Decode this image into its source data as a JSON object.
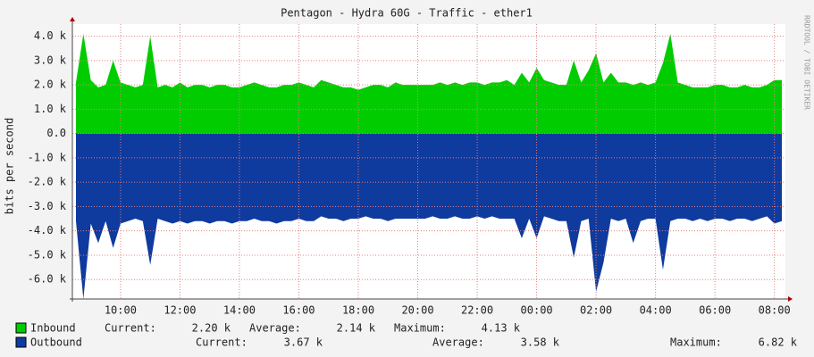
{
  "chart_data": {
    "type": "area",
    "title": "Pentagon - Hydra 60G - Traffic - ether1",
    "y_label": "bits per second",
    "watermark": "RRDTOOL / TOBI OETIKER",
    "grid": true,
    "ylim": [
      -6800,
      4500
    ],
    "yticks": [
      {
        "value": 4000,
        "label": "4.0 k"
      },
      {
        "value": 3000,
        "label": "3.0 k"
      },
      {
        "value": 2000,
        "label": "2.0 k"
      },
      {
        "value": 1000,
        "label": "1.0 k"
      },
      {
        "value": 0,
        "label": "0.0"
      },
      {
        "value": -1000,
        "label": "-1.0 k"
      },
      {
        "value": -2000,
        "label": "-2.0 k"
      },
      {
        "value": -3000,
        "label": "-3.0 k"
      },
      {
        "value": -4000,
        "label": "-4.0 k"
      },
      {
        "value": -5000,
        "label": "-5.0 k"
      },
      {
        "value": -6000,
        "label": "-6.0 k"
      }
    ],
    "x": [
      "08:30",
      "08:45",
      "09:00",
      "09:15",
      "09:30",
      "09:45",
      "10:00",
      "10:15",
      "10:30",
      "10:45",
      "11:00",
      "11:15",
      "11:30",
      "11:45",
      "12:00",
      "12:15",
      "12:30",
      "12:45",
      "13:00",
      "13:15",
      "13:30",
      "13:45",
      "14:00",
      "14:15",
      "14:30",
      "14:45",
      "15:00",
      "15:15",
      "15:30",
      "15:45",
      "16:00",
      "16:15",
      "16:30",
      "16:45",
      "17:00",
      "17:15",
      "17:30",
      "17:45",
      "18:00",
      "18:15",
      "18:30",
      "18:45",
      "19:00",
      "19:15",
      "19:30",
      "19:45",
      "20:00",
      "20:15",
      "20:30",
      "20:45",
      "21:00",
      "21:15",
      "21:30",
      "21:45",
      "22:00",
      "22:15",
      "22:30",
      "22:45",
      "23:00",
      "23:15",
      "23:30",
      "23:45",
      "00:00",
      "00:15",
      "00:30",
      "00:45",
      "01:00",
      "01:15",
      "01:30",
      "01:45",
      "02:00",
      "02:15",
      "02:30",
      "02:45",
      "03:00",
      "03:15",
      "03:30",
      "03:45",
      "04:00",
      "04:15",
      "04:30",
      "04:45",
      "05:00",
      "05:15",
      "05:30",
      "05:45",
      "06:00",
      "06:15",
      "06:30",
      "06:45",
      "07:00",
      "07:15",
      "07:30",
      "07:45",
      "08:00",
      "08:15"
    ],
    "xticks": [
      "10:00",
      "12:00",
      "14:00",
      "16:00",
      "18:00",
      "20:00",
      "22:00",
      "00:00",
      "02:00",
      "04:00",
      "06:00",
      "08:00"
    ],
    "series": [
      {
        "name": "Inbound",
        "color": "#00cc00",
        "values": [
          2100,
          4100,
          2200,
          1900,
          2000,
          3000,
          2100,
          2000,
          1900,
          2000,
          4000,
          1900,
          2000,
          1900,
          2100,
          1900,
          2000,
          2000,
          1900,
          2000,
          2000,
          1900,
          1900,
          2000,
          2100,
          2000,
          1900,
          1900,
          2000,
          2000,
          2100,
          2000,
          1900,
          2200,
          2100,
          2000,
          1900,
          1900,
          1800,
          1900,
          2000,
          2000,
          1900,
          2100,
          2000,
          2000,
          2000,
          2000,
          2000,
          2100,
          2000,
          2100,
          2000,
          2100,
          2100,
          2000,
          2100,
          2100,
          2200,
          2000,
          2500,
          2100,
          2700,
          2200,
          2100,
          2000,
          2000,
          3000,
          2100,
          2600,
          3300,
          2100,
          2500,
          2100,
          2100,
          2000,
          2100,
          2000,
          2100,
          2900,
          4100,
          2100,
          2000,
          1900,
          1900,
          1900,
          2000,
          2000,
          1900,
          1900,
          2000,
          1900,
          1900,
          2000,
          2200,
          2200
        ],
        "stats": [
          {
            "label": "Current:",
            "value": "2.20 k"
          },
          {
            "label": "Average:",
            "value": "2.14 k"
          },
          {
            "label": "Maximum:",
            "value": "4.13 k"
          }
        ]
      },
      {
        "name": "Outbound",
        "color": "#0f3a9e",
        "values": [
          -3600,
          -6800,
          -3700,
          -4500,
          -3600,
          -4700,
          -3700,
          -3600,
          -3500,
          -3600,
          -5400,
          -3500,
          -3600,
          -3700,
          -3600,
          -3700,
          -3600,
          -3600,
          -3700,
          -3600,
          -3600,
          -3700,
          -3600,
          -3600,
          -3500,
          -3600,
          -3600,
          -3700,
          -3600,
          -3600,
          -3500,
          -3600,
          -3600,
          -3400,
          -3500,
          -3500,
          -3600,
          -3500,
          -3500,
          -3400,
          -3500,
          -3500,
          -3600,
          -3500,
          -3500,
          -3500,
          -3500,
          -3500,
          -3400,
          -3500,
          -3500,
          -3400,
          -3500,
          -3500,
          -3400,
          -3500,
          -3400,
          -3500,
          -3500,
          -3500,
          -4300,
          -3500,
          -4300,
          -3400,
          -3500,
          -3600,
          -3600,
          -5100,
          -3600,
          -3500,
          -6500,
          -5300,
          -3500,
          -3600,
          -3500,
          -4500,
          -3600,
          -3500,
          -3500,
          -5600,
          -3600,
          -3500,
          -3500,
          -3600,
          -3500,
          -3600,
          -3500,
          -3500,
          -3600,
          -3500,
          -3500,
          -3600,
          -3500,
          -3400,
          -3700,
          -3600
        ],
        "stats": [
          {
            "label": "Current:",
            "value": "3.67 k"
          },
          {
            "label": "Average:",
            "value": "3.58 k"
          },
          {
            "label": "Maximum:",
            "value": "6.82 k"
          }
        ]
      }
    ]
  }
}
